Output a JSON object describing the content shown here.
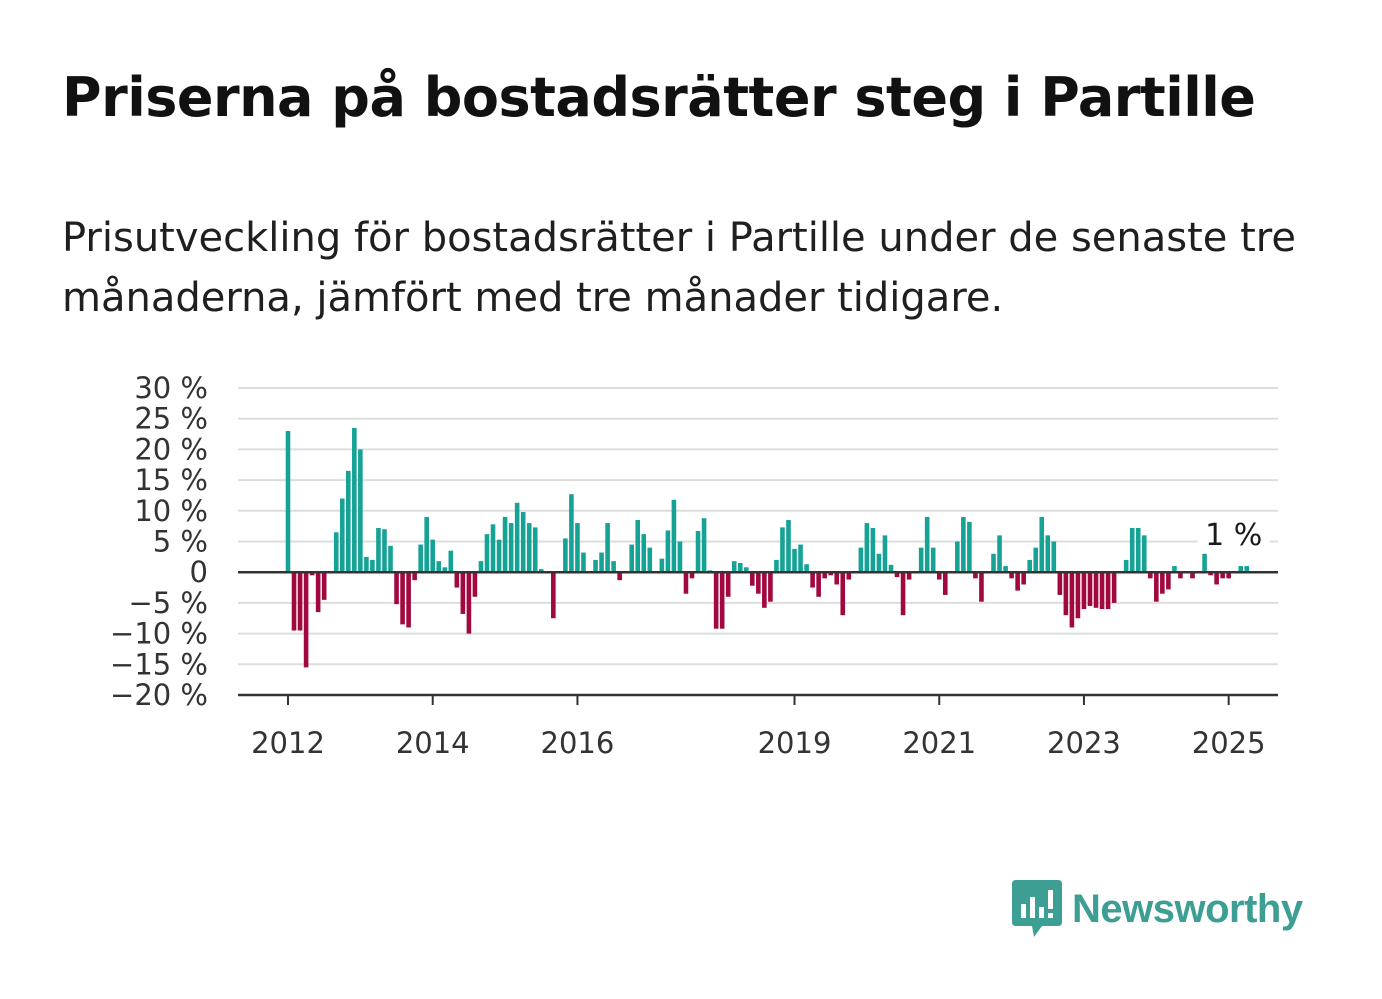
{
  "title": "Priserna på bostadsrätter steg i Partille",
  "subtitle": "Prisutveckling för bostadsrätter i Partille under de senaste tre månaderna, jämfört med tre månader tidigare.",
  "brand": {
    "name": "Newsworthy",
    "color": "#3d9e94",
    "icon": "newsworthy-logo-icon"
  },
  "chart_data": {
    "type": "bar",
    "ylim": [
      -20,
      30
    ],
    "yticks": [
      30,
      25,
      20,
      15,
      10,
      5,
      0,
      -5,
      -10,
      -15,
      -20
    ],
    "ytick_labels": [
      "30 %",
      "25 %",
      "20 %",
      "15 %",
      "10 %",
      "5 %",
      "0",
      "−5 %",
      "−10 %",
      "−15 %",
      "−20 %"
    ],
    "xticks": [
      {
        "label": "2012",
        "year": 2012
      },
      {
        "label": "2014",
        "year": 2014
      },
      {
        "label": "2016",
        "year": 2016
      },
      {
        "label": "2019",
        "year": 2019
      },
      {
        "label": "2021",
        "year": 2021
      },
      {
        "label": "2023",
        "year": 2023
      },
      {
        "label": "2025",
        "year": 2025
      }
    ],
    "start": "2012-01",
    "interval": "month",
    "grid": true,
    "colors": {
      "positive": "#16a396",
      "negative": "#a0083f",
      "grid": "#dddddd",
      "axis": "#333333"
    },
    "annotation": {
      "text": "1 %",
      "index": 157
    },
    "values": [
      23,
      -9.5,
      -9.5,
      -15.5,
      -0.5,
      -6.5,
      -4.5,
      0,
      6.5,
      12,
      16.5,
      23.5,
      20,
      2.5,
      2,
      7.2,
      7,
      4.3,
      -5.2,
      -8.5,
      -9,
      -1.3,
      4.5,
      9,
      5.3,
      1.8,
      0.8,
      3.5,
      -2.5,
      -6.8,
      -10,
      -4,
      1.8,
      6.2,
      7.8,
      5.3,
      9,
      8,
      11.3,
      9.8,
      8,
      7.3,
      0.5,
      0,
      -7.5,
      0,
      5.5,
      12.7,
      8,
      3.2,
      0,
      2,
      3.2,
      8,
      1.8,
      -1.3,
      0,
      4.5,
      8.5,
      6.2,
      4,
      0,
      2.2,
      6.8,
      11.8,
      5,
      -3.5,
      -1,
      6.7,
      8.8,
      0.3,
      -9.2,
      -9.2,
      -4,
      1.8,
      1.5,
      0.8,
      -2.2,
      -3.5,
      -5.8,
      -4.8,
      2,
      7.3,
      8.5,
      3.8,
      4.5,
      1.3,
      -2.5,
      -4,
      -1,
      -0.5,
      -2,
      -7,
      -1.2,
      0,
      4,
      8,
      7.2,
      3,
      6,
      1.2,
      -0.8,
      -7,
      -1.2,
      0,
      4,
      9,
      4,
      -1.2,
      -3.7,
      0,
      5,
      9,
      8.2,
      -1,
      -4.8,
      0,
      3,
      6,
      1,
      -1,
      -3,
      -2,
      2,
      4,
      9,
      6,
      5,
      -3.7,
      -7,
      -9,
      -7.5,
      -6,
      -5.5,
      -5.8,
      -6,
      -6,
      -5,
      0,
      2,
      7.2,
      7.2,
      6,
      -1,
      -4.8,
      -3.5,
      -2.8,
      1,
      -1,
      0,
      -1,
      0,
      3,
      -0.5,
      -2,
      -1,
      -1,
      0,
      1,
      1
    ]
  }
}
